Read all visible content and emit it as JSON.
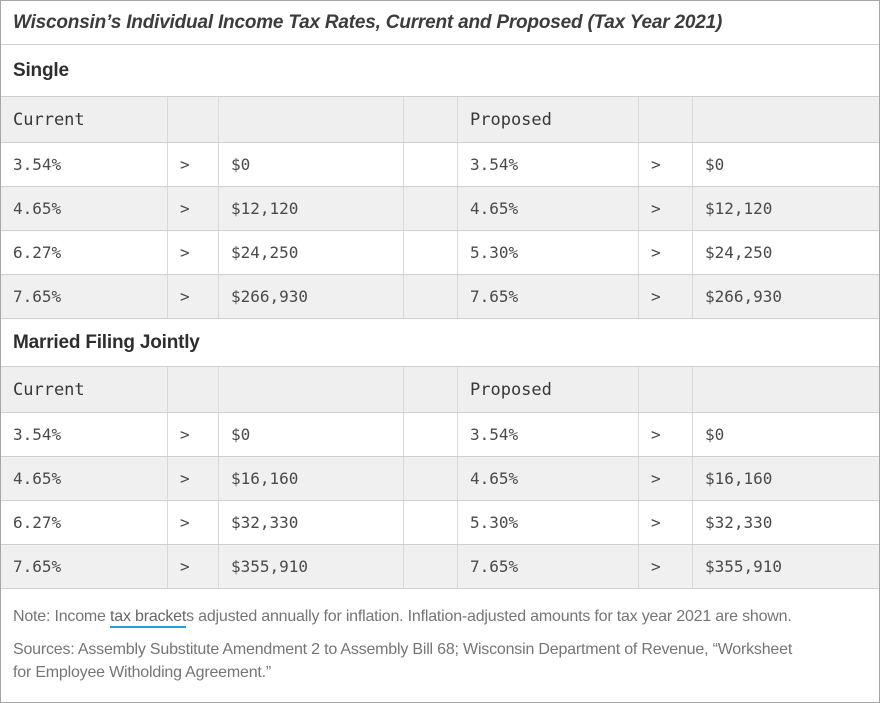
{
  "chart_data": {
    "type": "table",
    "title": "Wisconsin’s Individual Income Tax Rates, Current and Proposed (Tax Year 2021)",
    "greater_than_symbol": ">",
    "sections": [
      {
        "label": "Single",
        "column_headers": {
          "current": "Current",
          "proposed": "Proposed"
        },
        "rows": [
          [
            "3.54%",
            ">",
            "$0",
            "",
            "3.54%",
            ">",
            "$0"
          ],
          [
            "4.65%",
            ">",
            "$12,120",
            "",
            "4.65%",
            ">",
            "$12,120"
          ],
          [
            "6.27%",
            ">",
            "$24,250",
            "",
            "5.30%",
            ">",
            "$24,250"
          ],
          [
            "7.65%",
            ">",
            "$266,930",
            "",
            "7.65%",
            ">",
            "$266,930"
          ]
        ]
      },
      {
        "label": "Married Filing Jointly",
        "column_headers": {
          "current": "Current",
          "proposed": "Proposed"
        },
        "rows": [
          [
            "3.54%",
            ">",
            "$0",
            "",
            "3.54%",
            ">",
            "$0"
          ],
          [
            "4.65%",
            ">",
            "$16,160",
            "",
            "4.65%",
            ">",
            "$16,160"
          ],
          [
            "6.27%",
            ">",
            "$32,330",
            "",
            "5.30%",
            ">",
            "$32,330"
          ],
          [
            "7.65%",
            ">",
            "$355,910",
            "",
            "7.65%",
            ">",
            "$355,910"
          ]
        ]
      }
    ]
  },
  "footer": {
    "note": {
      "prefix": "Note: Income ",
      "link_text": "tax bracket",
      "suffix": "s adjusted annually for inflation. Inflation-adjusted amounts for tax year 2021 are shown."
    },
    "sources_line1": "Sources: Assembly Substitute Amendment 2 to Assembly Bill 68; Wisconsin Department of Revenue, “Worksheet",
    "sources_line2": "for Employee Witholding Agreement.”"
  },
  "colors": {
    "outer_border": "#a6a6a6",
    "inner_border_h": "#cfcfcf",
    "inner_border_v": "#d9d9d9",
    "column_header_bg": "#efefef",
    "alt_row_bg": "#f0f0f0",
    "title_text": "#3c3c3c",
    "mono_text": "#4a4a4a",
    "footer_text": "#757575",
    "link_underline": "#2b9fd8"
  }
}
